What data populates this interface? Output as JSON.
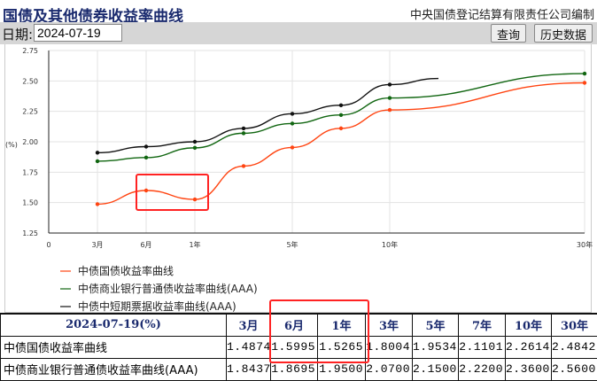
{
  "header": {
    "title": "国债及其他债券收益率曲线",
    "org": "中央国债登记结算有限责任公司编制"
  },
  "toolbar": {
    "date_label": "日期:",
    "date_value": "2024-07-19",
    "query_button": "查询",
    "history_button": "历史数据"
  },
  "chart_data": {
    "type": "line",
    "ylabel": "(%)",
    "ylim": [
      1.25,
      2.75
    ],
    "yticks": [
      "1.25",
      "1.50",
      "1.75",
      "2.00",
      "2.25",
      "2.50",
      "2.75"
    ],
    "xticks": [
      "0",
      "3月",
      "6月",
      "1年",
      "5年",
      "10年",
      "30年"
    ],
    "grid": true,
    "legend_placement": "bottom-left",
    "series": [
      {
        "name": "中债国债收益率曲线",
        "color": "#ff4411",
        "points": [
          [
            "3月",
            1.4874
          ],
          [
            "6月",
            1.5995
          ],
          [
            "1年",
            1.5265
          ],
          [
            "3年",
            1.8004
          ],
          [
            "5年",
            1.9534
          ],
          [
            "7年",
            2.1101
          ],
          [
            "10年",
            2.2614
          ],
          [
            "30年",
            2.4842
          ]
        ]
      },
      {
        "name": "中债商业银行普通债收益率曲线(AAA)",
        "color": "#116611",
        "points": [
          [
            "3月",
            1.84
          ],
          [
            "6月",
            1.87
          ],
          [
            "1年",
            1.95
          ],
          [
            "3年",
            2.07
          ],
          [
            "5年",
            2.15
          ],
          [
            "7年",
            2.22
          ],
          [
            "10年",
            2.36
          ],
          [
            "30年",
            2.56
          ]
        ]
      },
      {
        "name": "中债中短期票据收益率曲线(AAA)",
        "color": "#111111",
        "points": [
          [
            "3月",
            1.91
          ],
          [
            "6月",
            1.96
          ],
          [
            "1年",
            2.0
          ],
          [
            "3年",
            2.11
          ],
          [
            "5年",
            2.23
          ],
          [
            "7年",
            2.3
          ],
          [
            "10年",
            2.47
          ],
          [
            "15年",
            2.52
          ]
        ]
      }
    ]
  },
  "table": {
    "header": [
      "2024-07-19(%)",
      "3月",
      "6月",
      "1年",
      "3年",
      "5年",
      "7年",
      "10年",
      "30年"
    ],
    "rows": [
      {
        "name": "中债国债收益率曲线",
        "values": [
          "1.4874",
          "1.5995",
          "1.5265",
          "1.8004",
          "1.9534",
          "2.1101",
          "2.2614",
          "2.4842"
        ]
      },
      {
        "name": "中债商业银行普通债收益率曲线(AAA)",
        "values": [
          "1.8437",
          "1.8695",
          "1.9500",
          "2.0700",
          "2.1500",
          "2.2200",
          "2.3600",
          "2.5600"
        ]
      }
    ]
  },
  "highlight_color": "#ff2222"
}
